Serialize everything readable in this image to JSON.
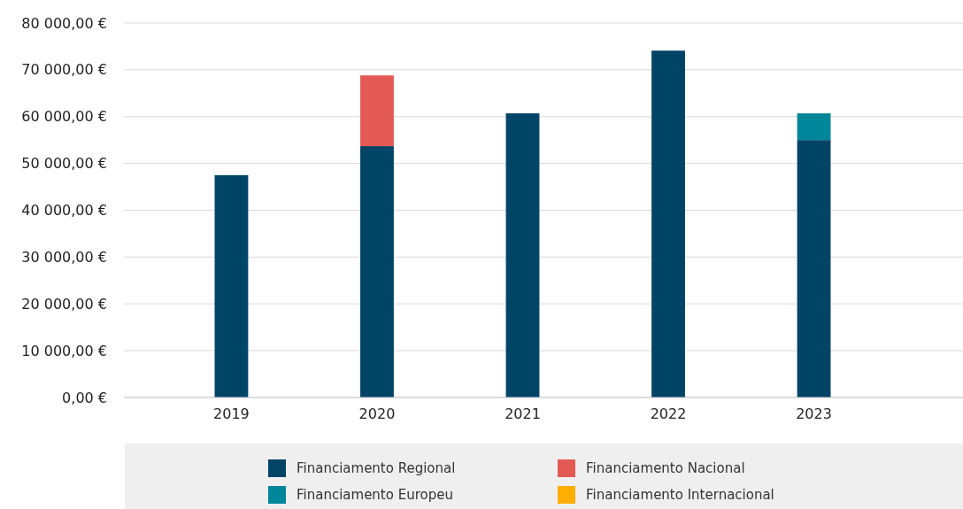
{
  "chart_data": {
    "type": "bar",
    "stacked": true,
    "categories": [
      "2019",
      "2020",
      "2021",
      "2022",
      "2023"
    ],
    "series": [
      {
        "name": "Financiamento Regional",
        "color": "#004466",
        "values": [
          47500,
          53700,
          60700,
          74100,
          55000
        ]
      },
      {
        "name": "Financiamento Nacional",
        "color": "#e35a55",
        "values": [
          null,
          15100,
          null,
          null,
          null
        ]
      },
      {
        "name": "Financiamento Europeu",
        "color": "#00869a",
        "values": [
          null,
          null,
          null,
          null,
          5700
        ]
      },
      {
        "name": "Financiamento Internacional",
        "color": "#ffae00",
        "values": [
          null,
          null,
          null,
          null,
          null
        ]
      }
    ],
    "ylim": [
      0,
      80000
    ],
    "yticks": [
      {
        "value": 0,
        "label": "0,00 €"
      },
      {
        "value": 10000,
        "label": "10 000,00 €"
      },
      {
        "value": 20000,
        "label": "20 000,00 €"
      },
      {
        "value": 30000,
        "label": "30 000,00 €"
      },
      {
        "value": 40000,
        "label": "40 000,00 €"
      },
      {
        "value": 50000,
        "label": "50 000,00 €"
      },
      {
        "value": 60000,
        "label": "60 000,00 €"
      },
      {
        "value": 70000,
        "label": "70 000,00 €"
      },
      {
        "value": 80000,
        "label": "80 000,00 €"
      }
    ],
    "grid": "y",
    "legend": "bottom"
  }
}
